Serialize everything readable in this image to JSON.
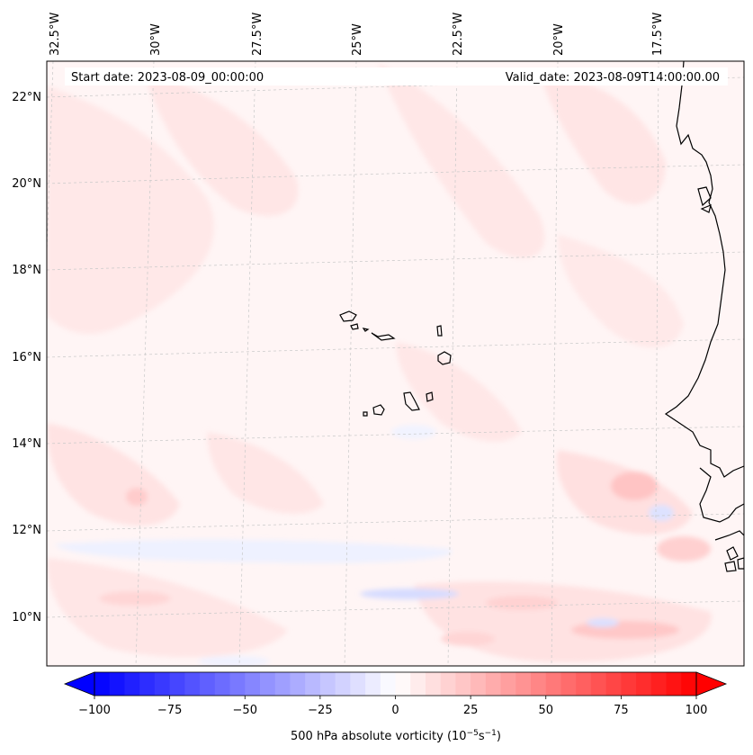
{
  "map": {
    "title_left": "Start date: 2023-08-09_00:00:00",
    "title_right": "Valid_date: 2023-08-09T14:00:00.00",
    "longitude_labels": [
      "32.5°W",
      "30°W",
      "27.5°W",
      "25°W",
      "22.5°W",
      "20°W",
      "17.5°W"
    ],
    "latitude_labels": [
      "22°N",
      "20°N",
      "18°N",
      "16°N",
      "14°N",
      "12°N",
      "10°N"
    ],
    "colormap": "bwr",
    "colors": {
      "negative": "#0000ff",
      "zero": "#ffffff",
      "positive": "#ff0000",
      "coast": "#000000",
      "grid": "#c8c8c8"
    }
  },
  "colorbar": {
    "label": "500 hPa absolute vorticity (10",
    "label_exp1": "−5",
    "label_mid": "s",
    "label_exp2": "−1",
    "label_end": ")",
    "range": [
      -100,
      100
    ],
    "ticks": [
      {
        "value": -100,
        "label": "−100"
      },
      {
        "value": -75,
        "label": "−75"
      },
      {
        "value": -50,
        "label": "−50"
      },
      {
        "value": -25,
        "label": "−25"
      },
      {
        "value": 0,
        "label": "0"
      },
      {
        "value": 25,
        "label": "25"
      },
      {
        "value": 50,
        "label": "50"
      },
      {
        "value": 75,
        "label": "75"
      },
      {
        "value": 100,
        "label": "100"
      }
    ],
    "levels": 40,
    "extend": "both"
  }
}
